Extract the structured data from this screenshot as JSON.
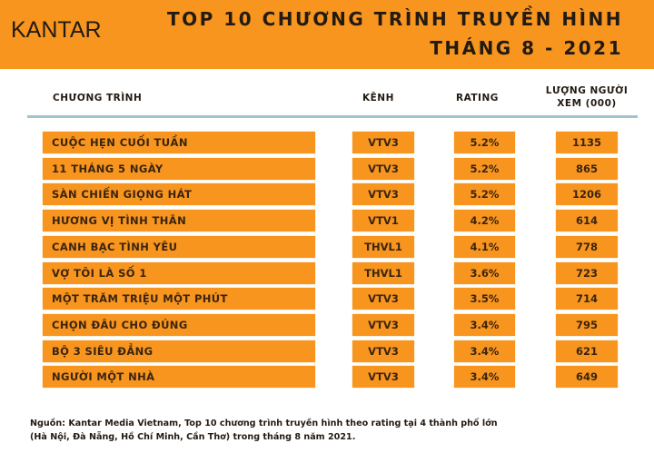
{
  "header": {
    "logo": "KANTAR",
    "title_line1": "TOP 10 CHƯƠNG TRÌNH TRUYỀN HÌNH",
    "title_line2": "THÁNG 8 - 2021",
    "brand_color": "#f7951f"
  },
  "table": {
    "columns": [
      "CHƯƠNG TRÌNH",
      "KÊNH",
      "RATING",
      "LƯỢNG NGƯỜI",
      "XEM (000)"
    ],
    "rows": [
      {
        "program": "CUỘC HẸN CUỐI TUẦN",
        "channel": "VTV3",
        "rating": "5.2%",
        "viewers": "1135"
      },
      {
        "program": "11 THÁNG 5 NGÀY",
        "channel": "VTV3",
        "rating": "5.2%",
        "viewers": "865"
      },
      {
        "program": "SÀN CHIẾN GIỌNG HÁT",
        "channel": "VTV3",
        "rating": "5.2%",
        "viewers": "1206"
      },
      {
        "program": "HƯƠNG VỊ TÌNH THÂN",
        "channel": "VTV1",
        "rating": "4.2%",
        "viewers": "614"
      },
      {
        "program": "CANH BẠC TÌNH YÊU",
        "channel": "THVL1",
        "rating": "4.1%",
        "viewers": "778"
      },
      {
        "program": "VỢ TÔI LÀ SỐ 1",
        "channel": "THVL1",
        "rating": "3.6%",
        "viewers": "723"
      },
      {
        "program": "MỘT TRĂM TRIỆU MỘT PHÚT",
        "channel": "VTV3",
        "rating": "3.5%",
        "viewers": "714"
      },
      {
        "program": "CHỌN ĐÂU CHO ĐÚNG",
        "channel": "VTV3",
        "rating": "3.4%",
        "viewers": "795"
      },
      {
        "program": "BỘ 3 SIÊU ĐẲNG",
        "channel": "VTV3",
        "rating": "3.4%",
        "viewers": "621"
      },
      {
        "program": "NGƯỜI MỘT NHÀ",
        "channel": "VTV3",
        "rating": "3.4%",
        "viewers": "649"
      }
    ]
  },
  "source": {
    "line1": "Nguồn: Kantar Media Vietnam, Top 10 chương trình truyền hình theo rating tại 4 thành phố lớn",
    "line2": "(Hà Nội, Đà Nẵng, Hồ Chí Minh, Cần Thơ) trong tháng 8 năm 2021."
  }
}
